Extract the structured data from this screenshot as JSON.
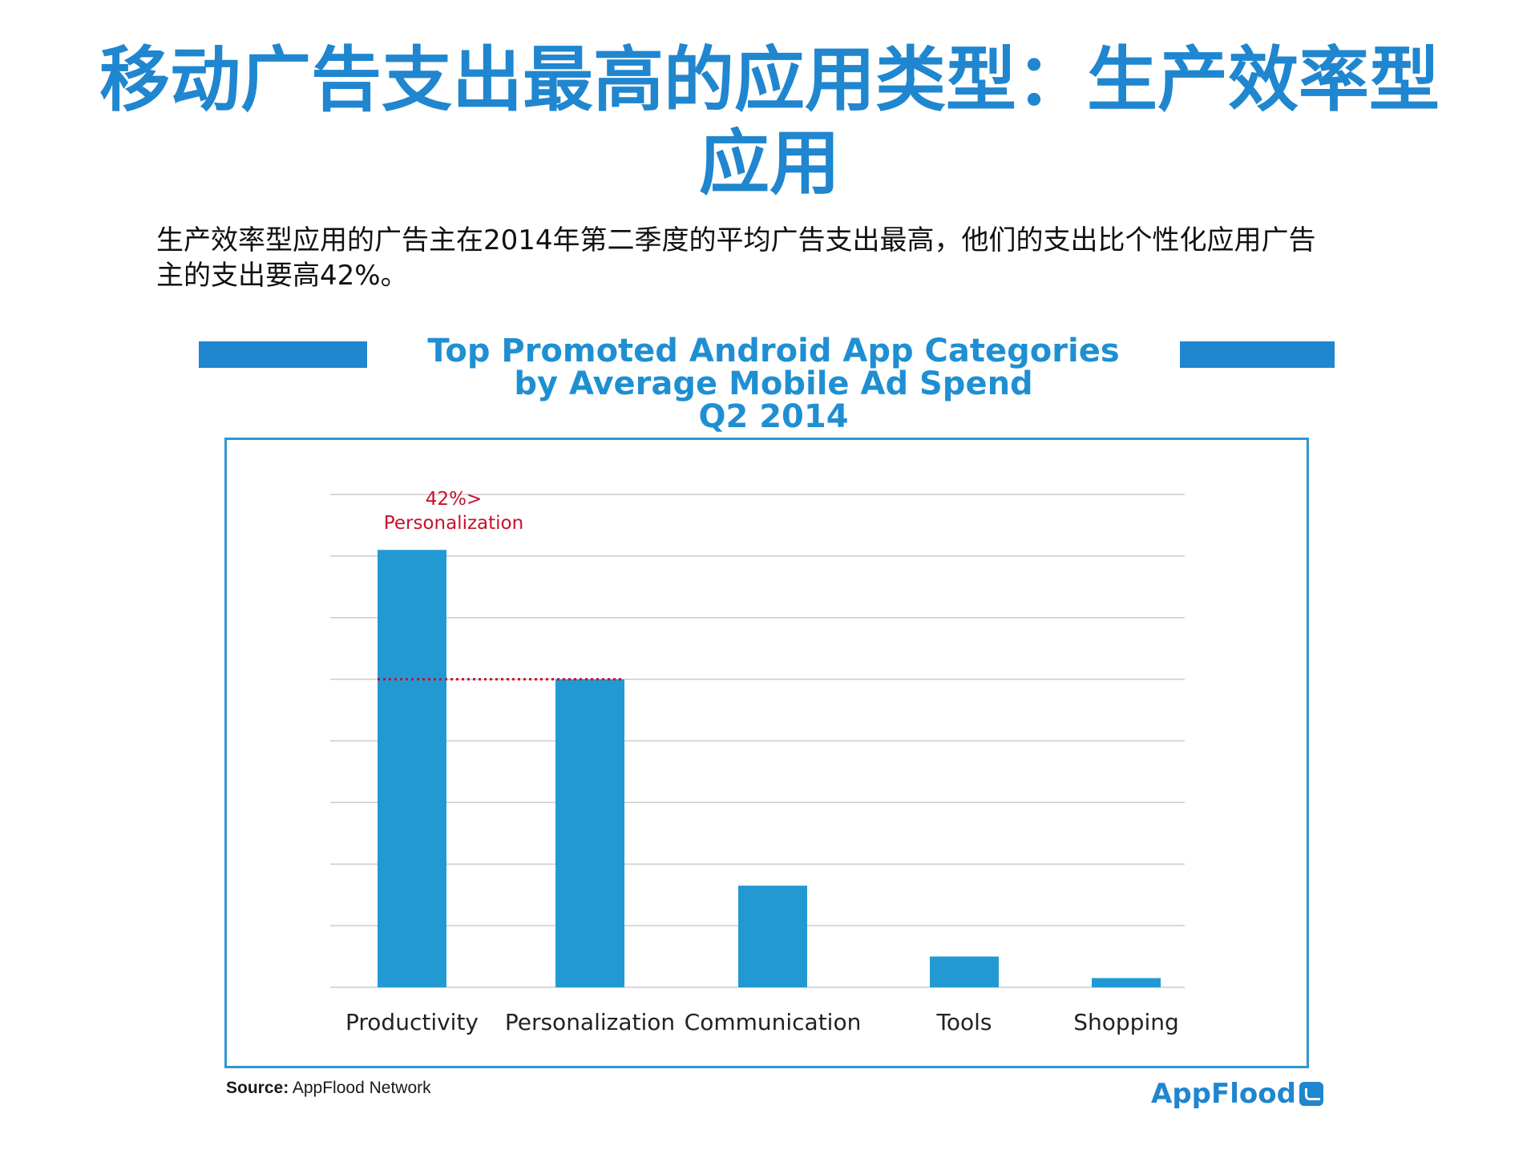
{
  "page": {
    "title_line1": "移动广告支出最高的应用类型：生产效率型",
    "title_line2": "应用",
    "subtitle_line1": "生产效率型应用的广告主在2014年第二季度的平均广告支出最高，他们的支出比个性化应用广告",
    "subtitle_line2": "主的支出要高42%。"
  },
  "chart_data": {
    "type": "bar",
    "title_lines": [
      "Top Promoted Android App Categories",
      "by Average Mobile Ad Spend",
      "Q2 2014"
    ],
    "categories": [
      "Productivity",
      "Personalization",
      "Communication",
      "Tools",
      "Shopping"
    ],
    "values": [
      142,
      100,
      33,
      10,
      3
    ],
    "ylim": [
      0,
      160
    ],
    "gridlines": 8,
    "grid": true,
    "annotation": {
      "line1": "42%>",
      "line2": "Personalization",
      "reference_value": 100,
      "color": "#c8102e"
    },
    "bar_color": "#2399d3"
  },
  "footer": {
    "source_label": "Source:",
    "source_text": " AppFlood Network",
    "logo_text": "AppFlood"
  },
  "colors": {
    "title": "#1f86cf",
    "accent_bar": "#1f86cf",
    "frame": "#2f96d3",
    "grid": "#cccccc",
    "annotation": "#c8102e"
  }
}
